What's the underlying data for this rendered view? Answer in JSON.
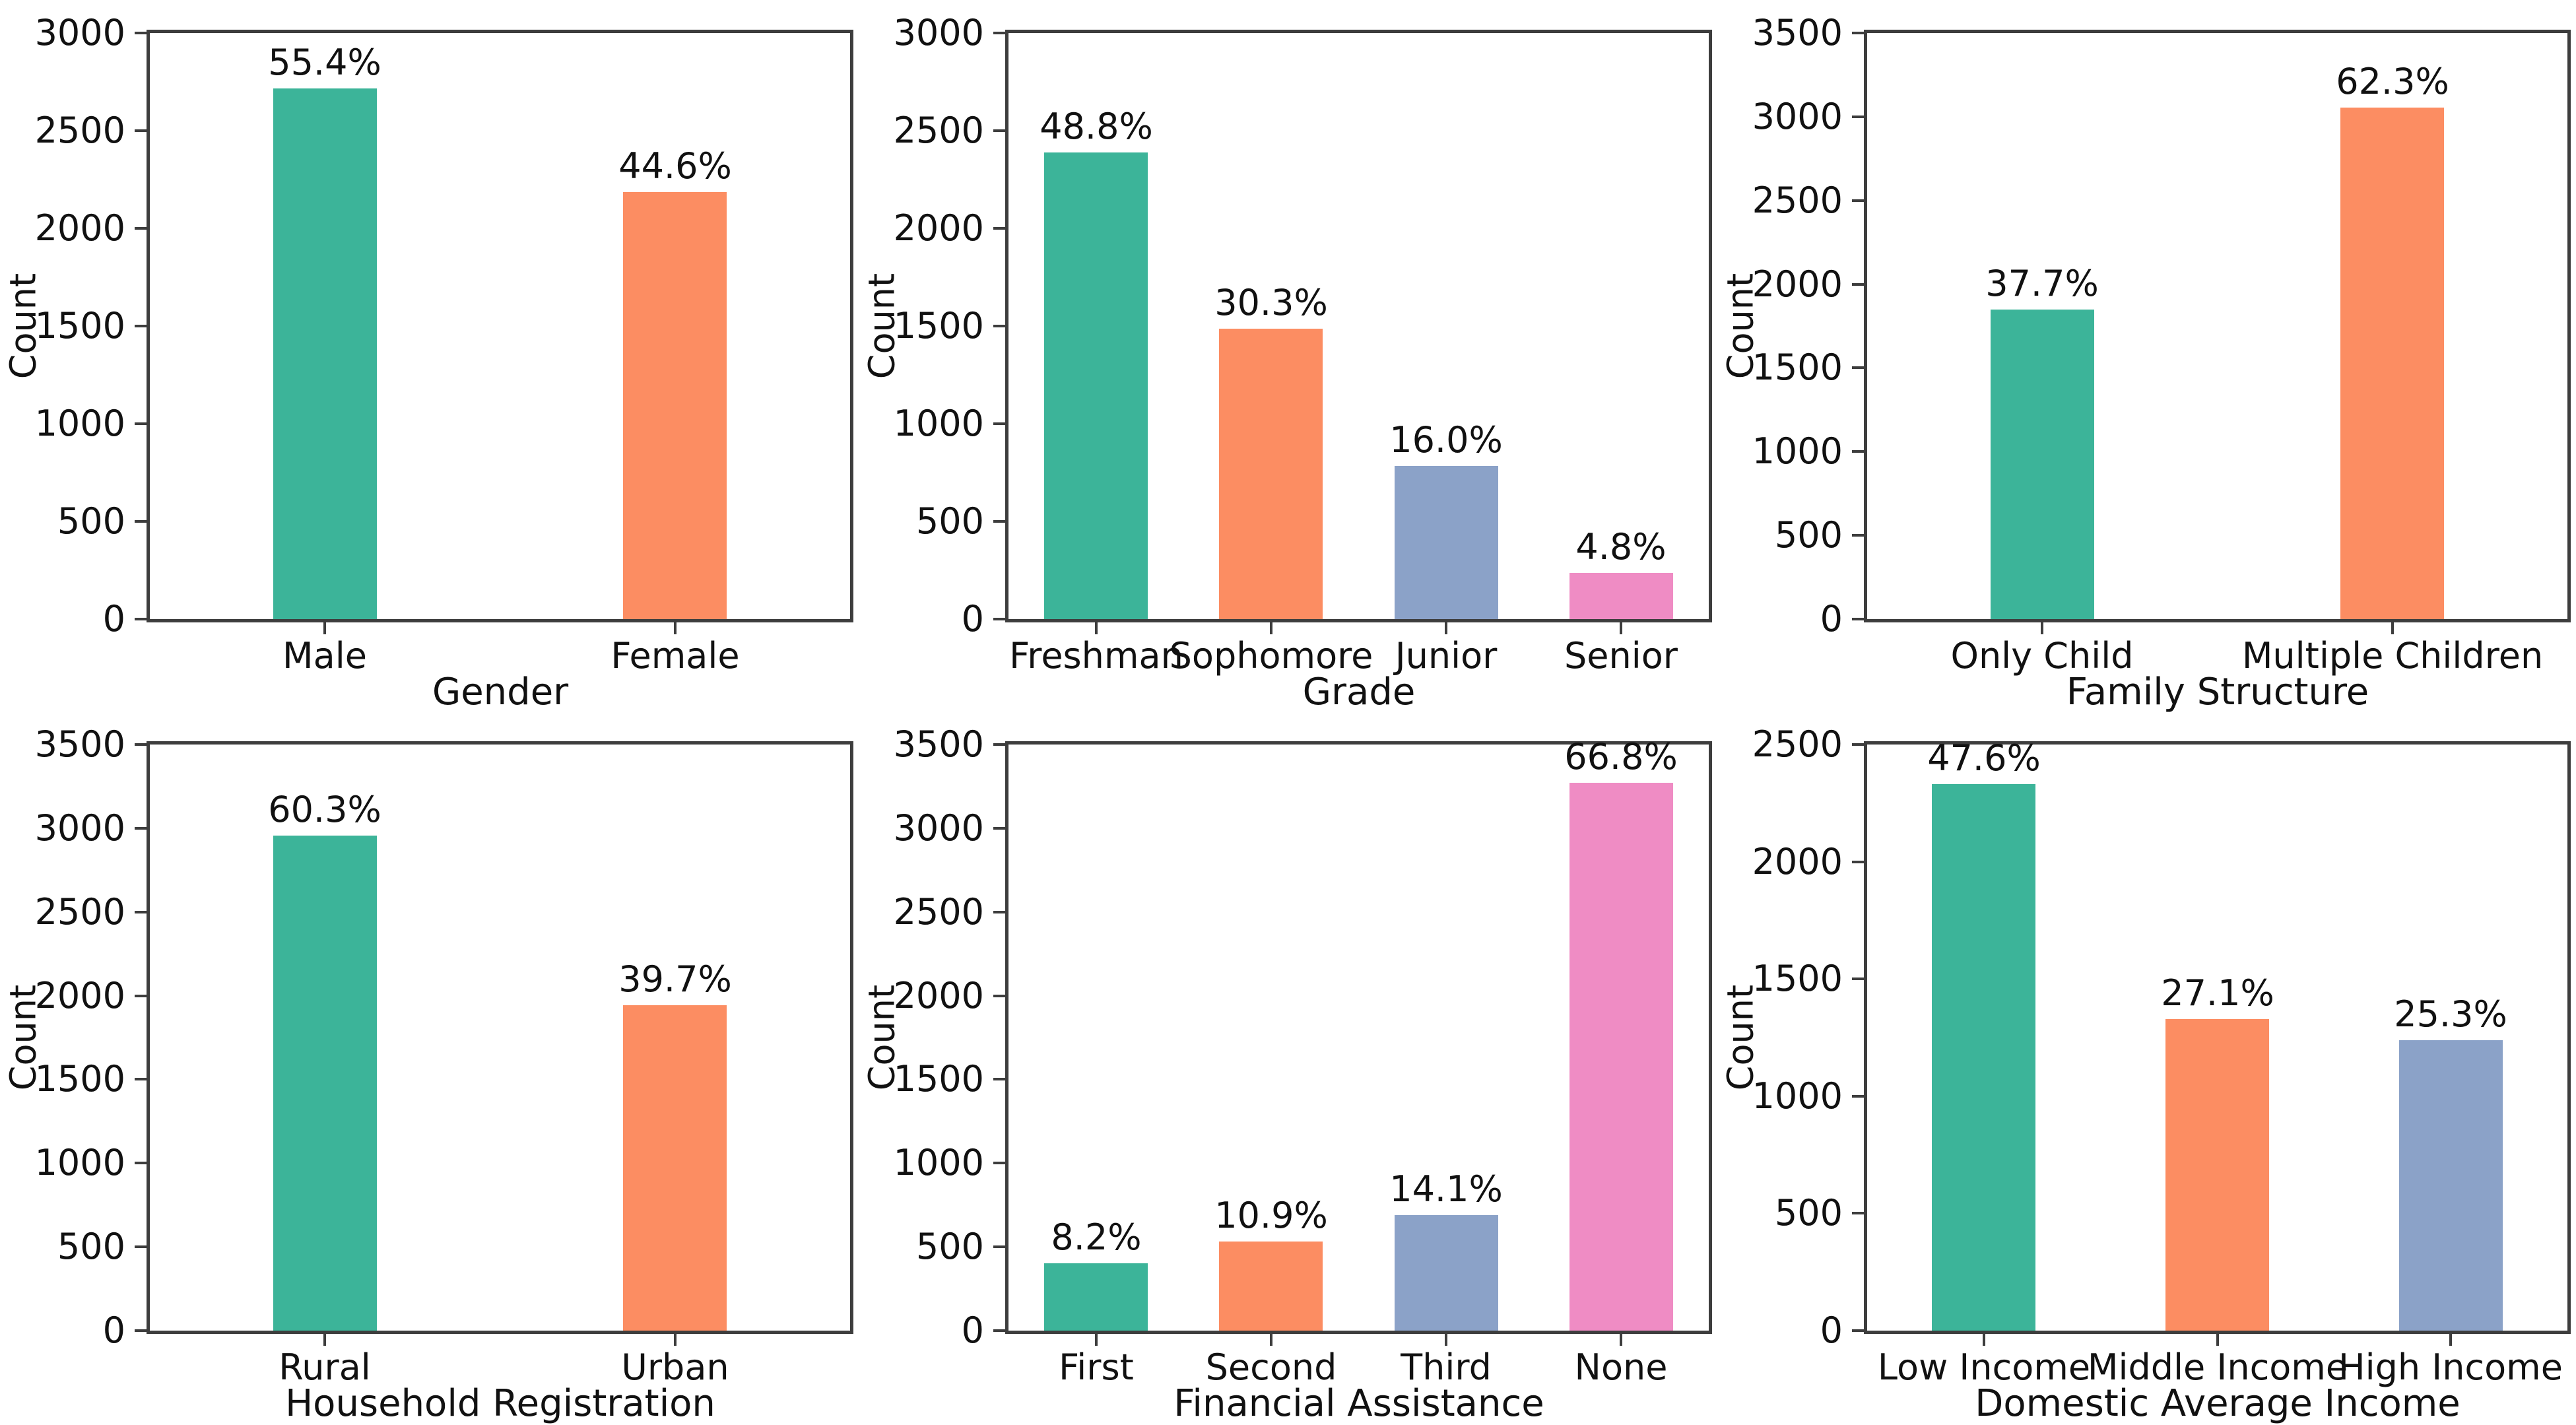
{
  "figure": {
    "background": "#ffffff",
    "spine_color": "#3d3d3d",
    "text_color": "#111111"
  },
  "palette": {
    "teal": "#3cb499",
    "orange": "#fc8d62",
    "blue": "#8ba2c8",
    "pink": "#ef8cc4"
  },
  "chart_data": [
    {
      "type": "bar",
      "xlabel": "Gender",
      "ylabel": "Count",
      "ylim": [
        0,
        3000
      ],
      "ytick_step": 500,
      "grid": false,
      "categories": [
        "Male",
        "Female"
      ],
      "values": [
        2715,
        2185
      ],
      "bar_labels": [
        "55.4%",
        "44.6%"
      ],
      "colors": [
        "teal",
        "orange"
      ]
    },
    {
      "type": "bar",
      "xlabel": "Grade",
      "ylabel": "Count",
      "ylim": [
        0,
        3000
      ],
      "ytick_step": 500,
      "grid": false,
      "categories": [
        "Freshman",
        "Sophomore",
        "Junior",
        "Senior"
      ],
      "values": [
        2390,
        1485,
        785,
        235
      ],
      "bar_labels": [
        "48.8%",
        "30.3%",
        "16.0%",
        "4.8%"
      ],
      "colors": [
        "teal",
        "orange",
        "blue",
        "pink"
      ]
    },
    {
      "type": "bar",
      "xlabel": "Family Structure",
      "ylabel": "Count",
      "ylim": [
        0,
        3500
      ],
      "ytick_step": 500,
      "grid": false,
      "categories": [
        "Only Child",
        "Multiple Children"
      ],
      "values": [
        1848,
        3055
      ],
      "bar_labels": [
        "37.7%",
        "62.3%"
      ],
      "colors": [
        "teal",
        "orange"
      ]
    },
    {
      "type": "bar",
      "xlabel": "Household Registration",
      "ylabel": "Count",
      "ylim": [
        0,
        3500
      ],
      "ytick_step": 500,
      "grid": false,
      "categories": [
        "Rural",
        "Urban"
      ],
      "values": [
        2955,
        1945
      ],
      "bar_labels": [
        "60.3%",
        "39.7%"
      ],
      "colors": [
        "teal",
        "orange"
      ]
    },
    {
      "type": "bar",
      "xlabel": "Financial Assistance",
      "ylabel": "Count",
      "ylim": [
        0,
        3500
      ],
      "ytick_step": 500,
      "grid": false,
      "categories": [
        "First",
        "Second",
        "Third",
        "None"
      ],
      "values": [
        402,
        534,
        691,
        3273
      ],
      "bar_labels": [
        "8.2%",
        "10.9%",
        "14.1%",
        "66.8%"
      ],
      "colors": [
        "teal",
        "orange",
        "blue",
        "pink"
      ]
    },
    {
      "type": "bar",
      "xlabel": "Domestic Average Income",
      "ylabel": "Count",
      "ylim": [
        0,
        2500
      ],
      "ytick_step": 500,
      "grid": false,
      "categories": [
        "Low Income",
        "Middle Income",
        "High Income"
      ],
      "values": [
        2330,
        1328,
        1240
      ],
      "bar_labels": [
        "47.6%",
        "27.1%",
        "25.3%"
      ],
      "colors": [
        "teal",
        "orange",
        "blue"
      ]
    }
  ]
}
